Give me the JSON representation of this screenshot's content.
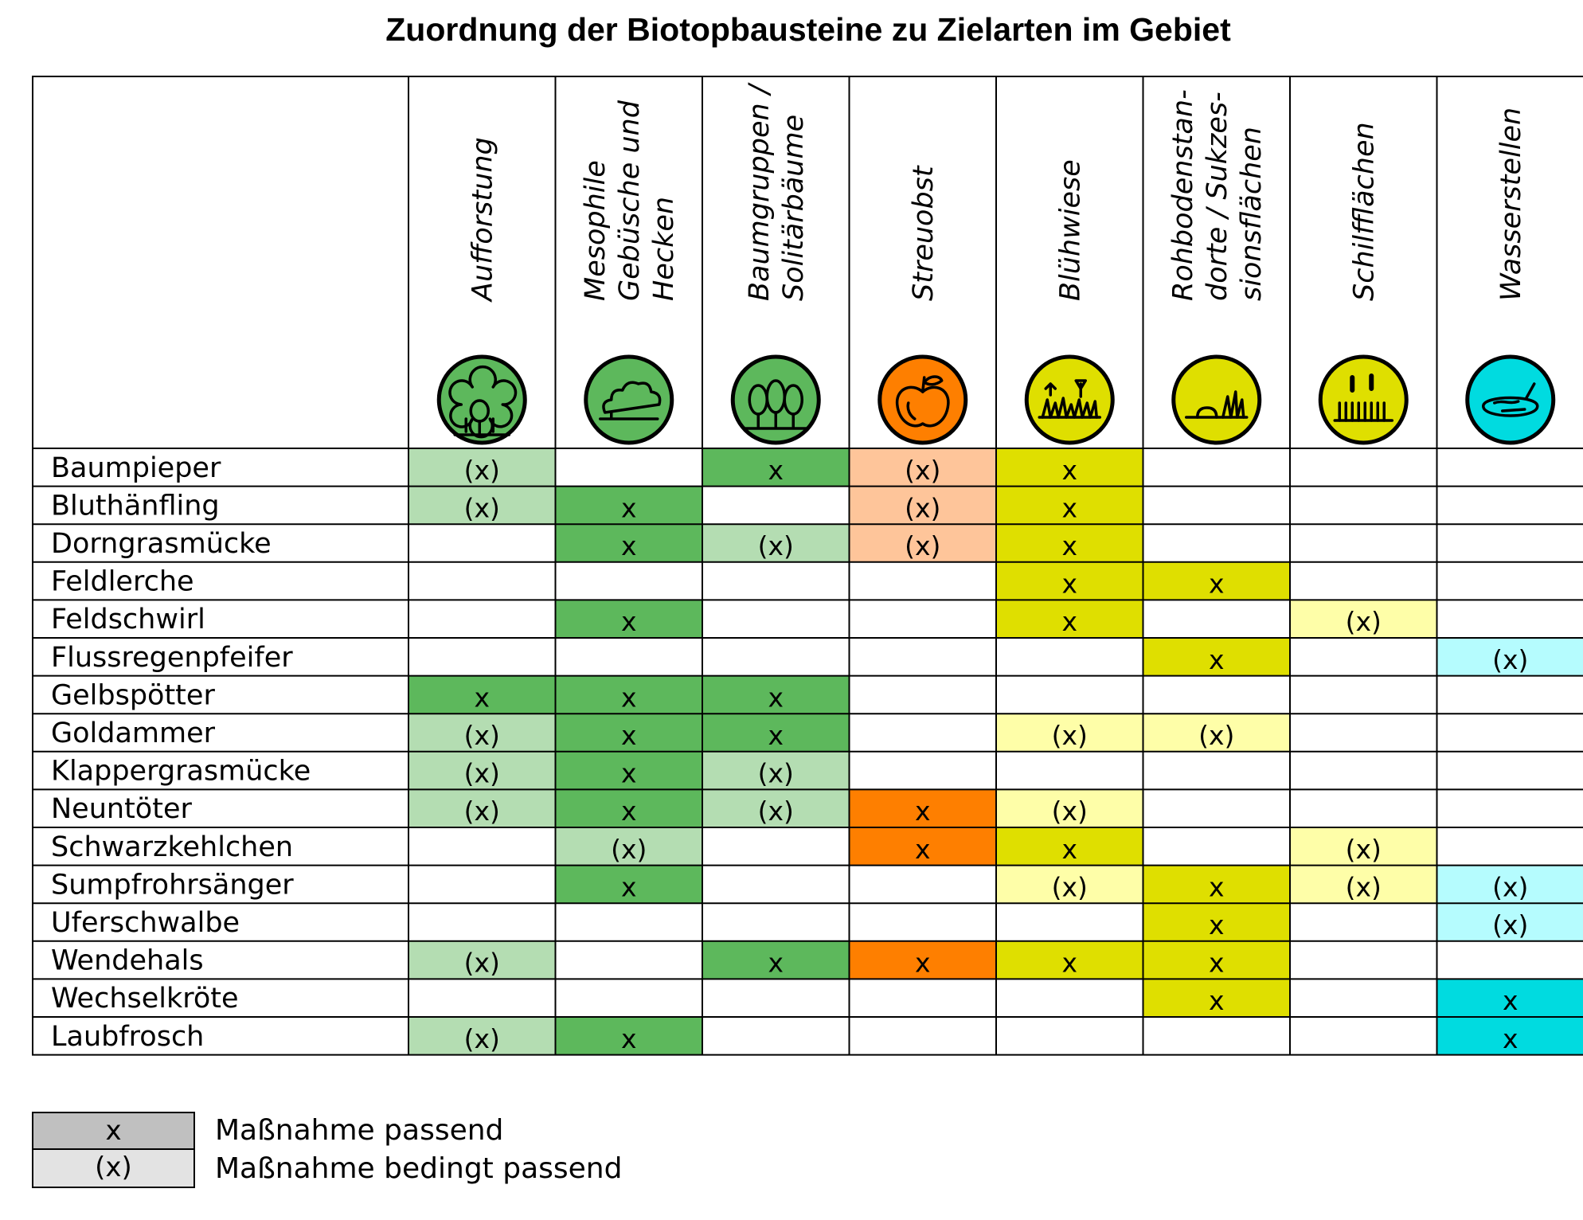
{
  "title": "Zuordnung der Biotopbausteine zu Zielarten im Gebiet",
  "chart_data": {
    "type": "table",
    "title": "Zuordnung der Biotopbausteine zu Zielarten im Gebiet",
    "columns": [
      {
        "label": "Aufforstung",
        "icon": "forest-icon",
        "color": "#5db85c",
        "light": "#b4ddb2"
      },
      {
        "label": "Mesophile Gebüsche und Hecken",
        "icon": "shrub-icon",
        "color": "#5db85c",
        "light": "#b4ddb2"
      },
      {
        "label": "Baumgruppen / Solitärbäume",
        "icon": "tree-group-icon",
        "color": "#5db85c",
        "light": "#b4ddb2"
      },
      {
        "label": "Streuobst",
        "icon": "apple-icon",
        "color": "#fe7f00",
        "light": "#fec59a"
      },
      {
        "label": "Blühwiese",
        "icon": "meadow-flowers-icon",
        "color": "#dfdf00",
        "light": "#fefea8"
      },
      {
        "label": "Rohbodenstandorte / Sukzessionsflächen",
        "icon": "raw-soil-icon",
        "color": "#dfdf00",
        "light": "#fefea8"
      },
      {
        "label": "Schilfflächen",
        "icon": "reed-icon",
        "color": "#dfdf00",
        "light": "#fefea8"
      },
      {
        "label": "Wasserstellen",
        "icon": "pond-icon",
        "color": "#00dbe0",
        "light": "#b5fcfe"
      }
    ],
    "rows": [
      {
        "species": "Baumpieper",
        "values": [
          "(x)",
          "",
          "x",
          "(x)",
          "x",
          "",
          "",
          ""
        ]
      },
      {
        "species": "Bluthänfling",
        "values": [
          "(x)",
          "x",
          "",
          "(x)",
          "x",
          "",
          "",
          ""
        ]
      },
      {
        "species": "Dorngrasmücke",
        "values": [
          "",
          "x",
          "(x)",
          "(x)",
          "x",
          "",
          "",
          ""
        ]
      },
      {
        "species": "Feldlerche",
        "values": [
          "",
          "",
          "",
          "",
          "x",
          "x",
          "",
          ""
        ]
      },
      {
        "species": "Feldschwirl",
        "values": [
          "",
          "x",
          "",
          "",
          "x",
          "",
          "(x)",
          ""
        ]
      },
      {
        "species": "Flussregenpfeifer",
        "values": [
          "",
          "",
          "",
          "",
          "",
          "x",
          "",
          "(x)"
        ]
      },
      {
        "species": "Gelbspötter",
        "values": [
          "x",
          "x",
          "x",
          "",
          "",
          "",
          "",
          ""
        ]
      },
      {
        "species": "Goldammer",
        "values": [
          "(x)",
          "x",
          "x",
          "",
          "(x)",
          "(x)",
          "",
          ""
        ]
      },
      {
        "species": "Klappergrasmücke",
        "values": [
          "(x)",
          "x",
          "(x)",
          "",
          "",
          "",
          "",
          ""
        ]
      },
      {
        "species": "Neuntöter",
        "values": [
          "(x)",
          "x",
          "(x)",
          "x",
          "(x)",
          "",
          "",
          ""
        ]
      },
      {
        "species": "Schwarzkehlchen",
        "values": [
          "",
          "(x)",
          "",
          "x",
          "x",
          "",
          "(x)",
          ""
        ]
      },
      {
        "species": "Sumpfrohrsänger",
        "values": [
          "",
          "x",
          "",
          "",
          "(x)",
          "x",
          "(x)",
          "(x)"
        ]
      },
      {
        "species": "Uferschwalbe",
        "values": [
          "",
          "",
          "",
          "",
          "",
          "x",
          "",
          "(x)"
        ]
      },
      {
        "species": "Wendehals",
        "values": [
          "(x)",
          "",
          "x",
          "x",
          "x",
          "x",
          "",
          ""
        ]
      },
      {
        "species": "Wechselkröte",
        "values": [
          "",
          "",
          "",
          "",
          "",
          "x",
          "",
          "x"
        ]
      },
      {
        "species": "Laubfrosch",
        "values": [
          "(x)",
          "x",
          "",
          "",
          "",
          "",
          "",
          "x"
        ]
      }
    ]
  },
  "legend": [
    {
      "symbol": "x",
      "label": "Maßnahme passend",
      "color": "#c0c0c0"
    },
    {
      "symbol": "(x)",
      "label": "Maßnahme bedingt passend",
      "color": "#e3e3e3"
    }
  ]
}
